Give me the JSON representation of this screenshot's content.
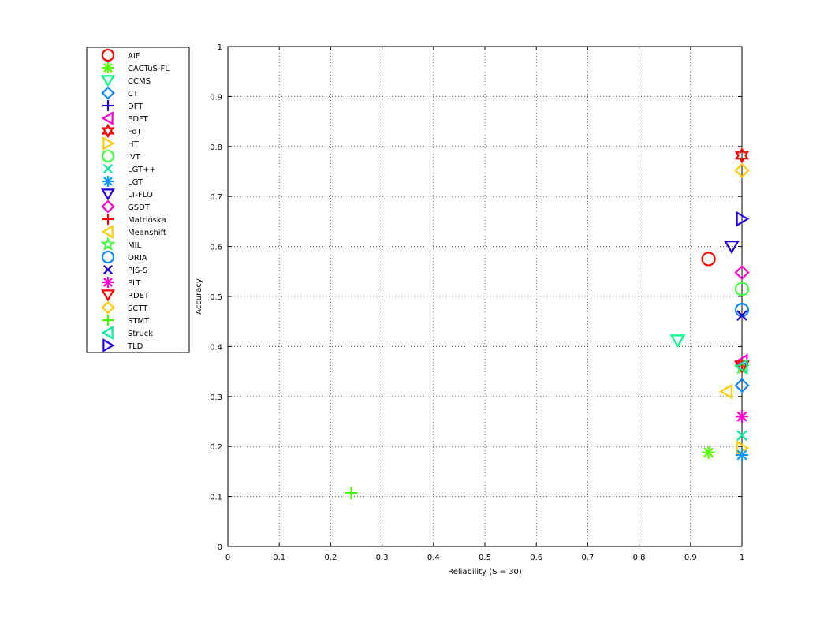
{
  "chart_data": {
    "type": "scatter",
    "title": "",
    "xlabel": "Reliability (S = 30)",
    "ylabel": "Accuracy",
    "xlim": [
      0,
      1
    ],
    "ylim": [
      0,
      1
    ],
    "xticks": [
      0,
      0.1,
      0.2,
      0.3,
      0.4,
      0.5,
      0.6,
      0.7,
      0.8,
      0.9,
      1
    ],
    "yticks": [
      0,
      0.1,
      0.2,
      0.3,
      0.4,
      0.5,
      0.6,
      0.7,
      0.8,
      0.9,
      1
    ],
    "x_tick_labels": [
      "0",
      "0.1",
      "0.2",
      "0.3",
      "0.4",
      "0.5",
      "0.6",
      "0.7",
      "0.8",
      "0.9",
      "1"
    ],
    "y_tick_labels": [
      "0",
      "0.1",
      "0.2",
      "0.3",
      "0.4",
      "0.5",
      "0.6",
      "0.7",
      "0.8",
      "0.9",
      "1"
    ],
    "grid": true,
    "legend_position": "outside-left",
    "series": [
      {
        "name": "AIF",
        "marker": "circle",
        "color": "#ff0000",
        "x": 0.935,
        "y": 0.575
      },
      {
        "name": "CACTuS-FL",
        "marker": "asterisk",
        "color": "#55ff00",
        "x": 0.935,
        "y": 0.188
      },
      {
        "name": "CCMS",
        "marker": "triangle-down",
        "color": "#00ff88",
        "x": 0.875,
        "y": 0.412
      },
      {
        "name": "CT",
        "marker": "diamond",
        "color": "#1188ff",
        "x": 1.0,
        "y": 0.322
      },
      {
        "name": "DFT",
        "marker": "plus",
        "color": "#2200dd",
        "x": 1.0,
        "y": 0.365
      },
      {
        "name": "EDFT",
        "marker": "triangle-left",
        "color": "#ff00cc",
        "x": 1.0,
        "y": 0.37
      },
      {
        "name": "FoT",
        "marker": "hexagram",
        "color": "#ff0000",
        "x": 1.0,
        "y": 0.782
      },
      {
        "name": "HT",
        "marker": "triangle-right",
        "color": "#ffcc00",
        "x": 1.0,
        "y": 0.197
      },
      {
        "name": "IVT",
        "marker": "circle",
        "color": "#44ff44",
        "x": 1.0,
        "y": 0.515
      },
      {
        "name": "LGT++",
        "marker": "x",
        "color": "#00ee99",
        "x": 1.0,
        "y": 0.222
      },
      {
        "name": "LGT",
        "marker": "asterisk",
        "color": "#1199ff",
        "x": 1.0,
        "y": 0.183
      },
      {
        "name": "LT-FLO",
        "marker": "triangle-down",
        "color": "#2200dd",
        "x": 0.98,
        "y": 0.6
      },
      {
        "name": "GSDT",
        "marker": "diamond",
        "color": "#ff00cc",
        "x": 1.0,
        "y": 0.548
      },
      {
        "name": "Matrioska",
        "marker": "plus",
        "color": "#ff0000",
        "x": 1.0,
        "y": 0.362
      },
      {
        "name": "Meanshift",
        "marker": "triangle-left",
        "color": "#ffcc00",
        "x": 0.97,
        "y": 0.31
      },
      {
        "name": "MIL",
        "marker": "pentagram",
        "color": "#44ff44",
        "x": 1.0,
        "y": 0.358
      },
      {
        "name": "ORIA",
        "marker": "circle",
        "color": "#1188ff",
        "x": 1.0,
        "y": 0.473
      },
      {
        "name": "PJS-S",
        "marker": "x",
        "color": "#2200dd",
        "x": 1.0,
        "y": 0.462
      },
      {
        "name": "PLT",
        "marker": "asterisk",
        "color": "#ff00cc",
        "x": 1.0,
        "y": 0.26
      },
      {
        "name": "RDET",
        "marker": "triangle-down",
        "color": "#ff0000",
        "x": 1.0,
        "y": 0.36
      },
      {
        "name": "SCTT",
        "marker": "diamond",
        "color": "#ffcc00",
        "x": 1.0,
        "y": 0.752
      },
      {
        "name": "STMT",
        "marker": "plus",
        "color": "#44ff00",
        "x": 0.24,
        "y": 0.107
      },
      {
        "name": "Struck",
        "marker": "triangle-left",
        "color": "#00ee99",
        "x": 1.0,
        "y": 0.36
      },
      {
        "name": "TLD",
        "marker": "triangle-right",
        "color": "#2200dd",
        "x": 1.0,
        "y": 0.655
      }
    ]
  }
}
